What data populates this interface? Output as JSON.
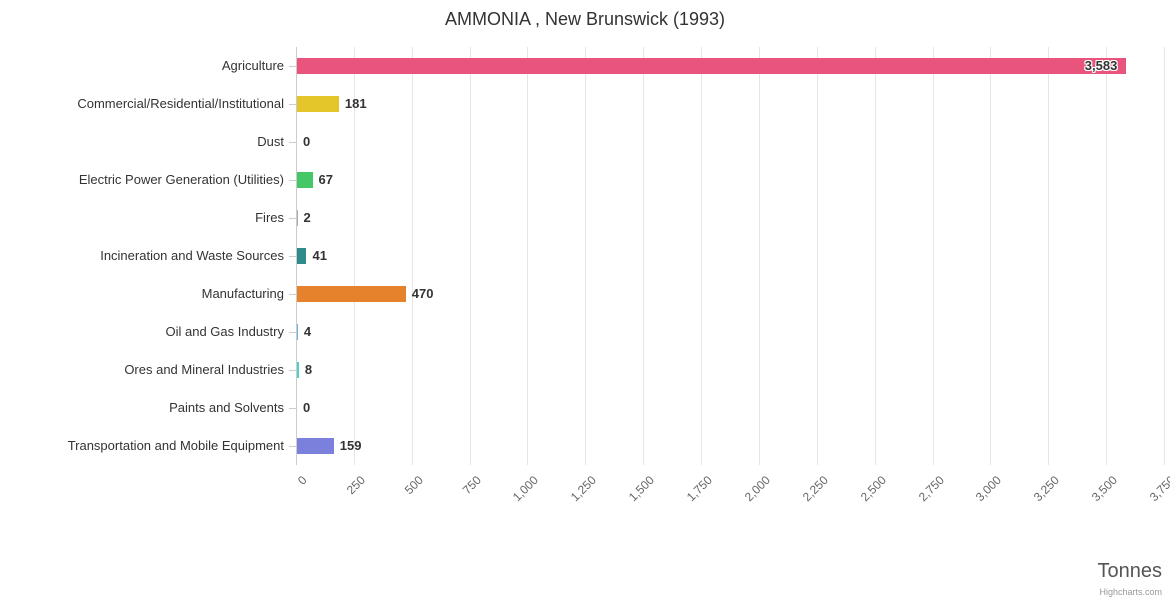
{
  "credits": "Highcharts.com",
  "chart_data": {
    "type": "bar",
    "orientation": "horizontal",
    "title": "AMMONIA , New Brunswick (1993)",
    "categories": [
      "Agriculture",
      "Commercial/Residential/Institutional",
      "Dust",
      "Electric Power Generation (Utilities)",
      "Fires",
      "Incineration and Waste Sources",
      "Manufacturing",
      "Oil and Gas Industry",
      "Ores and Mineral Industries",
      "Paints and Solvents",
      "Transportation and Mobile Equipment"
    ],
    "values": [
      3583,
      181,
      0,
      67,
      2,
      41,
      470,
      4,
      8,
      0,
      159
    ],
    "value_labels": [
      "3,583",
      "181",
      "0",
      "67",
      "2",
      "41",
      "470",
      "4",
      "8",
      "0",
      "159"
    ],
    "colors": [
      "#e8547c",
      "#e4c62b",
      "#aaaaaa",
      "#44c767",
      "#aaaaaa",
      "#2f8c8a",
      "#e5822b",
      "#6fb3e0",
      "#4fd1c5",
      "#aaaaaa",
      "#7b80dd"
    ],
    "xlabel": "Tonnes",
    "xlim": [
      0,
      3750
    ],
    "tick_interval": 250,
    "x_tick_labels": [
      "0",
      "250",
      "500",
      "750",
      "1,000",
      "1,250",
      "1,500",
      "1,750",
      "2,000",
      "2,250",
      "2,500",
      "2,750",
      "3,000",
      "3,250",
      "3,500",
      "3,750"
    ],
    "grid": true,
    "legend": false,
    "gridline_color": "#e6e6e6",
    "axis_line_color": "#cccccc"
  }
}
